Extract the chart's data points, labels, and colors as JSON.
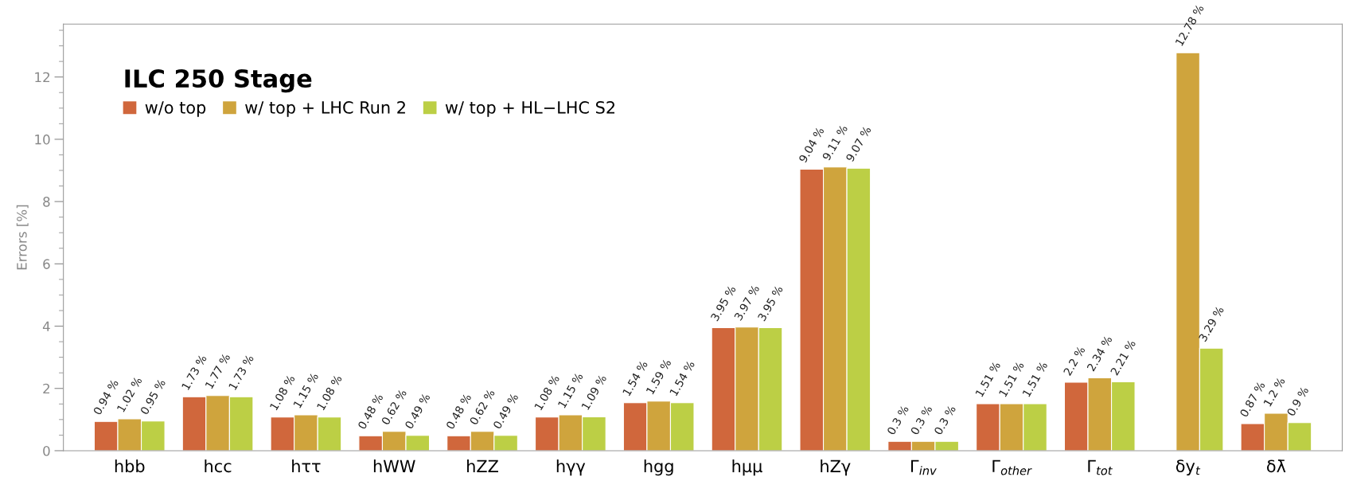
{
  "chart_data": {
    "type": "bar",
    "legend_title": "ILC 250 Stage",
    "ylabel": "Errors [%]",
    "categories": [
      "hbb",
      "hcc",
      "hττ",
      "hWW",
      "hZZ",
      "hγγ",
      "hgg",
      "hμμ",
      "hZγ",
      "Γ$_{inv}$",
      "Γ$_{other}$",
      "Γ$_{tot}$",
      "δy$_{t}$",
      "δλ̄"
    ],
    "series": [
      {
        "name": "w/o top",
        "color": "#d0673c",
        "values": [
          0.94,
          1.73,
          1.08,
          0.48,
          0.48,
          1.08,
          1.54,
          3.95,
          9.04,
          0.3,
          1.51,
          2.2,
          null,
          0.87
        ],
        "value_labels": [
          "0.94 %",
          "1.73 %",
          "1.08 %",
          "0.48 %",
          "0.48 %",
          "1.08 %",
          "1.54 %",
          "3.95 %",
          "9.04 %",
          "0.3 %",
          "1.51 %",
          "2.2 %",
          null,
          "0.87 %"
        ]
      },
      {
        "name": "w/ top + LHC Run 2",
        "color": "#cfa43d",
        "values": [
          1.02,
          1.77,
          1.15,
          0.62,
          0.62,
          1.15,
          1.59,
          3.97,
          9.11,
          0.3,
          1.51,
          2.34,
          12.78,
          1.2
        ],
        "value_labels": [
          "1.02 %",
          "1.77 %",
          "1.15 %",
          "0.62 %",
          "0.62 %",
          "1.15 %",
          "1.59 %",
          "3.97 %",
          "9.11 %",
          "0.3 %",
          "1.51 %",
          "2.34 %",
          "12.78 %",
          "1.2 %"
        ]
      },
      {
        "name": "w/ top + HL−LHC S2",
        "color": "#bccf45",
        "values": [
          0.95,
          1.73,
          1.08,
          0.49,
          0.49,
          1.09,
          1.54,
          3.95,
          9.07,
          0.3,
          1.51,
          2.21,
          3.29,
          0.9
        ],
        "value_labels": [
          "0.95 %",
          "1.73 %",
          "1.08 %",
          "0.49 %",
          "0.49 %",
          "1.09 %",
          "1.54 %",
          "3.95 %",
          "9.07 %",
          "0.3 %",
          "1.51 %",
          "2.21 %",
          "3.29 %",
          "0.9 %"
        ]
      }
    ],
    "ylim": [
      0,
      13.7
    ],
    "yticks": [
      0,
      2,
      4,
      6,
      8,
      10,
      12
    ],
    "grid": false,
    "legend": "top left"
  }
}
